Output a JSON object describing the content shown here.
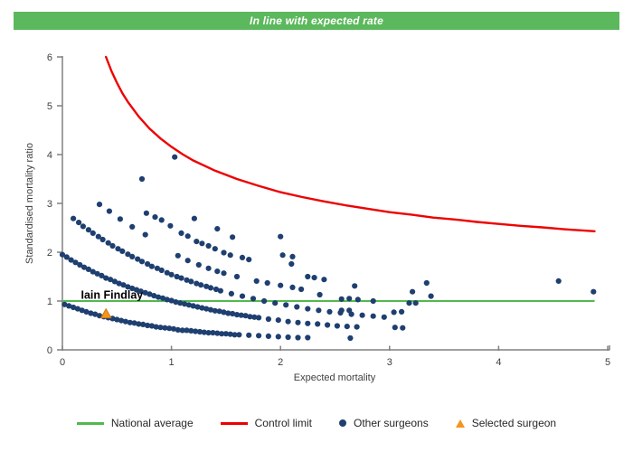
{
  "banner": {
    "text": "In line with expected rate",
    "bg": "#5cb85c",
    "fg": "#ffffff"
  },
  "chart_data": {
    "type": "scatter",
    "title": "",
    "xlabel": "Expected mortality",
    "ylabel": "Standardised mortality ratio",
    "xlim": [
      0,
      5
    ],
    "ylim": [
      0,
      6
    ],
    "x_ticks": [
      0,
      1,
      2,
      3,
      4,
      5
    ],
    "y_ticks": [
      0,
      1,
      2,
      3,
      4,
      5,
      6
    ],
    "grid": false,
    "legend_position": "bottom",
    "axis_color": "#808080",
    "national_average": {
      "y": 1,
      "x_start": 0,
      "x_end": 4.88,
      "color": "#52b94e"
    },
    "control_limit": {
      "color": "#ee0000",
      "points": [
        [
          0.4,
          6.0
        ],
        [
          0.45,
          5.71
        ],
        [
          0.5,
          5.47
        ],
        [
          0.55,
          5.26
        ],
        [
          0.6,
          5.08
        ],
        [
          0.7,
          4.78
        ],
        [
          0.8,
          4.53
        ],
        [
          0.9,
          4.33
        ],
        [
          1.0,
          4.16
        ],
        [
          1.1,
          4.01
        ],
        [
          1.2,
          3.88
        ],
        [
          1.4,
          3.67
        ],
        [
          1.6,
          3.5
        ],
        [
          1.8,
          3.36
        ],
        [
          2.0,
          3.23
        ],
        [
          2.2,
          3.13
        ],
        [
          2.4,
          3.04
        ],
        [
          2.6,
          2.96
        ],
        [
          2.8,
          2.89
        ],
        [
          3.0,
          2.82
        ],
        [
          3.2,
          2.77
        ],
        [
          3.4,
          2.71
        ],
        [
          3.6,
          2.67
        ],
        [
          3.8,
          2.62
        ],
        [
          4.0,
          2.58
        ],
        [
          4.2,
          2.54
        ],
        [
          4.4,
          2.51
        ],
        [
          4.6,
          2.47
        ],
        [
          4.88,
          2.43
        ]
      ]
    },
    "other_surgeons": {
      "color": "#1e3f70",
      "arcs": [
        [
          [
            0.02,
            0.93
          ],
          [
            0.06,
            0.9
          ],
          [
            0.1,
            0.87
          ],
          [
            0.14,
            0.84
          ],
          [
            0.18,
            0.81
          ],
          [
            0.22,
            0.78
          ],
          [
            0.26,
            0.75
          ],
          [
            0.3,
            0.73
          ],
          [
            0.34,
            0.7
          ],
          [
            0.38,
            0.68
          ],
          [
            0.42,
            0.66
          ],
          [
            0.46,
            0.64
          ],
          [
            0.5,
            0.62
          ],
          [
            0.54,
            0.6
          ],
          [
            0.58,
            0.58
          ],
          [
            0.62,
            0.56
          ],
          [
            0.66,
            0.55
          ],
          [
            0.7,
            0.53
          ],
          [
            0.74,
            0.52
          ],
          [
            0.78,
            0.5
          ],
          [
            0.82,
            0.49
          ],
          [
            0.86,
            0.47
          ],
          [
            0.9,
            0.46
          ],
          [
            0.94,
            0.45
          ],
          [
            0.98,
            0.44
          ],
          [
            1.02,
            0.43
          ],
          [
            1.06,
            0.41
          ],
          [
            1.1,
            0.4
          ],
          [
            1.14,
            0.4
          ],
          [
            1.18,
            0.39
          ],
          [
            1.22,
            0.38
          ],
          [
            1.26,
            0.37
          ],
          [
            1.3,
            0.36
          ],
          [
            1.34,
            0.35
          ],
          [
            1.38,
            0.35
          ],
          [
            1.42,
            0.34
          ],
          [
            1.46,
            0.33
          ],
          [
            1.5,
            0.33
          ],
          [
            1.54,
            0.32
          ],
          [
            1.58,
            0.31
          ],
          [
            1.62,
            0.31
          ],
          [
            1.71,
            0.3
          ],
          [
            1.8,
            0.29
          ],
          [
            1.89,
            0.28
          ],
          [
            1.98,
            0.27
          ],
          [
            2.07,
            0.26
          ],
          [
            2.16,
            0.25
          ],
          [
            2.25,
            0.25
          ]
        ],
        [
          [
            0.0,
            1.95
          ],
          [
            0.04,
            1.9
          ],
          [
            0.08,
            1.84
          ],
          [
            0.12,
            1.79
          ],
          [
            0.16,
            1.74
          ],
          [
            0.2,
            1.69
          ],
          [
            0.24,
            1.65
          ],
          [
            0.28,
            1.6
          ],
          [
            0.32,
            1.56
          ],
          [
            0.36,
            1.52
          ],
          [
            0.4,
            1.47
          ],
          [
            0.44,
            1.44
          ],
          [
            0.48,
            1.4
          ],
          [
            0.52,
            1.36
          ],
          [
            0.56,
            1.33
          ],
          [
            0.6,
            1.29
          ],
          [
            0.64,
            1.26
          ],
          [
            0.68,
            1.23
          ],
          [
            0.72,
            1.2
          ],
          [
            0.76,
            1.17
          ],
          [
            0.8,
            1.14
          ],
          [
            0.84,
            1.11
          ],
          [
            0.88,
            1.08
          ],
          [
            0.92,
            1.06
          ],
          [
            0.96,
            1.03
          ],
          [
            1.0,
            1.01
          ],
          [
            1.04,
            0.98
          ],
          [
            1.08,
            0.96
          ],
          [
            1.12,
            0.94
          ],
          [
            1.16,
            0.92
          ],
          [
            1.2,
            0.9
          ],
          [
            1.24,
            0.88
          ],
          [
            1.28,
            0.86
          ],
          [
            1.32,
            0.84
          ],
          [
            1.36,
            0.82
          ],
          [
            1.4,
            0.8
          ],
          [
            1.44,
            0.79
          ],
          [
            1.48,
            0.77
          ],
          [
            1.52,
            0.75
          ],
          [
            1.56,
            0.74
          ],
          [
            1.6,
            0.72
          ],
          [
            1.64,
            0.71
          ],
          [
            1.68,
            0.7
          ],
          [
            1.72,
            0.68
          ],
          [
            1.76,
            0.67
          ],
          [
            1.8,
            0.66
          ],
          [
            1.89,
            0.63
          ],
          [
            1.98,
            0.61
          ],
          [
            2.07,
            0.58
          ],
          [
            2.16,
            0.56
          ],
          [
            2.25,
            0.54
          ],
          [
            2.34,
            0.53
          ],
          [
            2.43,
            0.51
          ],
          [
            2.52,
            0.49
          ],
          [
            2.61,
            0.48
          ],
          [
            2.7,
            0.47
          ]
        ],
        [
          [
            0.1,
            2.69
          ],
          [
            0.15,
            2.61
          ],
          [
            0.19,
            2.53
          ],
          [
            0.24,
            2.46
          ],
          [
            0.28,
            2.39
          ],
          [
            0.33,
            2.32
          ],
          [
            0.37,
            2.26
          ],
          [
            0.42,
            2.19
          ],
          [
            0.46,
            2.13
          ],
          [
            0.51,
            2.07
          ],
          [
            0.55,
            2.02
          ],
          [
            0.6,
            1.96
          ],
          [
            0.64,
            1.91
          ],
          [
            0.69,
            1.86
          ],
          [
            0.73,
            1.81
          ],
          [
            0.78,
            1.76
          ],
          [
            0.82,
            1.71
          ],
          [
            0.87,
            1.67
          ],
          [
            0.91,
            1.63
          ],
          [
            0.96,
            1.58
          ],
          [
            1.0,
            1.54
          ],
          [
            1.05,
            1.5
          ],
          [
            1.09,
            1.47
          ],
          [
            1.14,
            1.43
          ],
          [
            1.18,
            1.4
          ],
          [
            1.23,
            1.36
          ],
          [
            1.27,
            1.33
          ],
          [
            1.32,
            1.3
          ],
          [
            1.36,
            1.27
          ],
          [
            1.41,
            1.24
          ],
          [
            1.45,
            1.21
          ],
          [
            1.55,
            1.15
          ],
          [
            1.65,
            1.1
          ],
          [
            1.75,
            1.05
          ],
          [
            1.85,
            1.0
          ],
          [
            1.95,
            0.96
          ],
          [
            2.05,
            0.92
          ],
          [
            2.15,
            0.88
          ],
          [
            2.25,
            0.84
          ],
          [
            2.35,
            0.81
          ],
          [
            2.45,
            0.78
          ],
          [
            2.55,
            0.76
          ],
          [
            2.65,
            0.73
          ],
          [
            2.75,
            0.71
          ],
          [
            2.85,
            0.69
          ],
          [
            2.95,
            0.67
          ]
        ]
      ],
      "points": [
        [
          0.73,
          3.5
        ],
        [
          1.03,
          3.95
        ],
        [
          0.34,
          2.98
        ],
        [
          0.43,
          2.84
        ],
        [
          0.53,
          2.68
        ],
        [
          0.64,
          2.52
        ],
        [
          0.76,
          2.36
        ],
        [
          0.77,
          2.8
        ],
        [
          0.85,
          2.72
        ],
        [
          0.91,
          2.66
        ],
        [
          0.99,
          2.54
        ],
        [
          1.09,
          2.39
        ],
        [
          1.15,
          2.33
        ],
        [
          1.23,
          2.22
        ],
        [
          1.28,
          2.18
        ],
        [
          1.34,
          2.13
        ],
        [
          1.4,
          2.07
        ],
        [
          1.48,
          1.99
        ],
        [
          1.54,
          1.94
        ],
        [
          1.65,
          1.89
        ],
        [
          1.71,
          1.85
        ],
        [
          1.21,
          2.69
        ],
        [
          1.42,
          2.48
        ],
        [
          1.56,
          2.31
        ],
        [
          2.0,
          2.32
        ],
        [
          1.06,
          1.93
        ],
        [
          1.15,
          1.83
        ],
        [
          1.25,
          1.74
        ],
        [
          1.34,
          1.67
        ],
        [
          1.42,
          1.61
        ],
        [
          1.48,
          1.57
        ],
        [
          1.6,
          1.5
        ],
        [
          1.78,
          1.41
        ],
        [
          1.88,
          1.37
        ],
        [
          2.0,
          1.32
        ],
        [
          2.11,
          1.28
        ],
        [
          2.19,
          1.24
        ],
        [
          2.36,
          1.13
        ],
        [
          2.02,
          1.94
        ],
        [
          2.11,
          1.91
        ],
        [
          2.1,
          1.76
        ],
        [
          2.25,
          1.5
        ],
        [
          2.31,
          1.48
        ],
        [
          2.4,
          1.44
        ],
        [
          2.68,
          1.31
        ],
        [
          2.56,
          1.04
        ],
        [
          2.63,
          1.05
        ],
        [
          2.71,
          1.03
        ],
        [
          2.85,
          1.0
        ],
        [
          3.18,
          0.96
        ],
        [
          3.24,
          0.96
        ],
        [
          3.21,
          1.19
        ],
        [
          3.34,
          1.37
        ],
        [
          3.38,
          1.1
        ],
        [
          2.56,
          0.81
        ],
        [
          2.63,
          0.81
        ],
        [
          3.04,
          0.77
        ],
        [
          3.11,
          0.78
        ],
        [
          3.05,
          0.46
        ],
        [
          3.12,
          0.45
        ],
        [
          2.64,
          0.24
        ],
        [
          4.55,
          1.41
        ],
        [
          4.87,
          1.19
        ]
      ]
    },
    "selected_surgeon": {
      "label": "Iain Findlay",
      "color": "#f5941f",
      "edge_color": "#cc7a14",
      "point": [
        0.4,
        0.72
      ],
      "label_pos": [
        0.17,
        1.05
      ]
    }
  },
  "legend": {
    "items": [
      {
        "label": "National average",
        "type": "line",
        "color": "#52b94e"
      },
      {
        "label": "Control limit",
        "type": "line",
        "color": "#ee0000"
      },
      {
        "label": "Other surgeons",
        "type": "dot",
        "color": "#1e3f70"
      },
      {
        "label": "Selected surgeon",
        "type": "triangle",
        "color": "#f5941f"
      }
    ]
  }
}
